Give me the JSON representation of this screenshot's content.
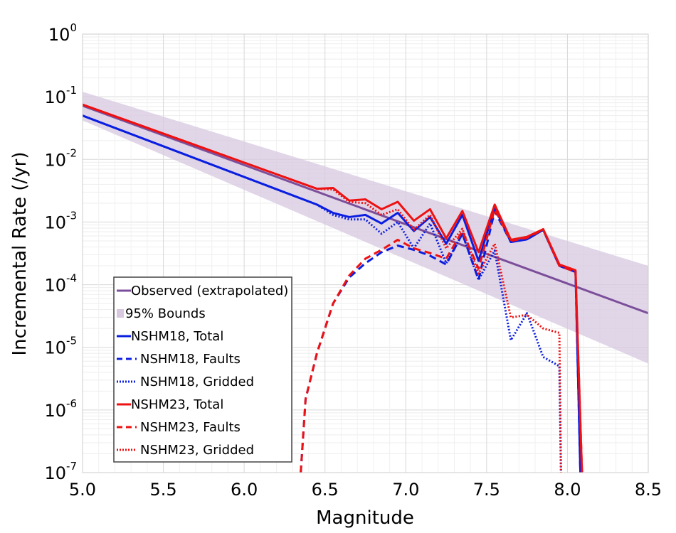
{
  "chart_data": {
    "type": "line",
    "xlabel": "Magnitude",
    "ylabel": "Incremental Rate (/yr)",
    "xlim": [
      5.0,
      8.5
    ],
    "ylim": [
      1e-07,
      1
    ],
    "yscale": "log",
    "grid": true,
    "legend_position": "bottom-left",
    "x_ticks": [
      "5.0",
      "5.5",
      "6.0",
      "6.5",
      "7.0",
      "7.5",
      "8.0",
      "8.5"
    ],
    "y_ticks": [
      {
        "base": "10",
        "exp": "0"
      },
      {
        "base": "10",
        "exp": "-1"
      },
      {
        "base": "10",
        "exp": "-2"
      },
      {
        "base": "10",
        "exp": "-3"
      },
      {
        "base": "10",
        "exp": "-4"
      },
      {
        "base": "10",
        "exp": "-5"
      },
      {
        "base": "10",
        "exp": "-6"
      },
      {
        "base": "10",
        "exp": "-7"
      }
    ],
    "bounds": {
      "name": "95% Bounds",
      "color": "#d7c8e0",
      "x": [
        5.0,
        8.5
      ],
      "upper": [
        0.12,
        0.0002
      ],
      "lower": [
        0.042,
        5.5e-06
      ]
    },
    "series": [
      {
        "name": "Observed (extrapolated)",
        "color": "#7b4e9a",
        "dash": "solid",
        "x": [
          5.0,
          8.5
        ],
        "y": [
          0.072,
          3.5e-05
        ]
      },
      {
        "name": "NSHM18, Total",
        "color": "#0a1ee0",
        "dash": "solid",
        "x": [
          5.0,
          6.45,
          6.55,
          6.65,
          6.75,
          6.85,
          6.95,
          7.05,
          7.15,
          7.25,
          7.35,
          7.45,
          7.55,
          7.65,
          7.75,
          7.85,
          7.95,
          8.05,
          8.08
        ],
        "y": [
          0.05,
          0.0019,
          0.0014,
          0.0012,
          0.0013,
          0.00095,
          0.0014,
          0.00072,
          0.0012,
          0.00045,
          0.0013,
          0.00024,
          0.0017,
          0.00048,
          0.00053,
          0.00075,
          0.0002,
          0.00016,
          1e-07
        ]
      },
      {
        "name": "NSHM18, Faults",
        "color": "#0a1ee0",
        "dash": "dashed",
        "x": [
          6.35,
          6.38,
          6.45,
          6.55,
          6.65,
          6.75,
          6.85,
          6.95,
          7.05,
          7.15,
          7.25,
          7.35,
          7.45,
          7.55,
          7.65,
          7.75,
          7.85,
          7.95,
          8.05,
          8.08
        ],
        "y": [
          1e-07,
          1.5e-06,
          8e-06,
          5e-05,
          0.00013,
          0.00022,
          0.00033,
          0.00042,
          0.00036,
          0.00029,
          0.00021,
          0.00065,
          0.00012,
          0.0015,
          0.00048,
          0.00053,
          0.00075,
          0.0002,
          0.00016,
          1e-07
        ]
      },
      {
        "name": "NSHM18, Gridded",
        "color": "#0a1ee0",
        "dash": "dotted",
        "x": [
          5.0,
          6.45,
          6.55,
          6.65,
          6.75,
          6.85,
          6.95,
          7.05,
          7.15,
          7.25,
          7.35,
          7.45,
          7.55,
          7.65,
          7.75,
          7.85,
          7.95,
          7.96
        ],
        "y": [
          0.05,
          0.0019,
          0.0013,
          0.0011,
          0.0011,
          0.00065,
          0.001,
          0.00038,
          0.00095,
          0.00022,
          0.00065,
          0.00012,
          0.00035,
          1.3e-05,
          3.5e-05,
          7e-06,
          5e-06,
          1e-07
        ]
      },
      {
        "name": "NSHM23, Total",
        "color": "#ee1111",
        "dash": "solid",
        "x": [
          5.0,
          6.45,
          6.55,
          6.65,
          6.75,
          6.85,
          6.95,
          7.05,
          7.15,
          7.25,
          7.35,
          7.45,
          7.55,
          7.65,
          7.75,
          7.85,
          7.95,
          8.05,
          8.09
        ],
        "y": [
          0.075,
          0.0034,
          0.0035,
          0.0022,
          0.0023,
          0.0016,
          0.0021,
          0.00105,
          0.0016,
          0.00055,
          0.0015,
          0.00033,
          0.0019,
          0.00052,
          0.00058,
          0.00077,
          0.00021,
          0.00017,
          1e-07
        ]
      },
      {
        "name": "NSHM23, Faults",
        "color": "#ee1111",
        "dash": "dashed",
        "x": [
          6.35,
          6.38,
          6.45,
          6.55,
          6.65,
          6.75,
          6.85,
          6.95,
          7.05,
          7.15,
          7.25,
          7.35,
          7.45,
          7.55,
          7.65,
          7.75,
          7.85,
          7.95,
          8.05,
          8.09
        ],
        "y": [
          1e-07,
          1.5e-06,
          8e-06,
          5e-05,
          0.00014,
          0.00026,
          0.00036,
          0.00052,
          0.00038,
          0.00032,
          0.00026,
          0.00072,
          0.00018,
          0.0016,
          0.0005,
          0.00056,
          0.00076,
          0.0002,
          0.00016,
          1e-07
        ]
      },
      {
        "name": "NSHM23, Gridded",
        "color": "#ee1111",
        "dash": "dotted",
        "x": [
          5.0,
          6.45,
          6.55,
          6.65,
          6.75,
          6.85,
          6.95,
          7.05,
          7.15,
          7.25,
          7.35,
          7.45,
          7.55,
          7.65,
          7.75,
          7.85,
          7.95,
          7.96
        ],
        "y": [
          0.075,
          0.0034,
          0.0033,
          0.0021,
          0.002,
          0.0013,
          0.0016,
          0.00075,
          0.0013,
          0.00038,
          0.00078,
          0.00015,
          0.00045,
          3e-05,
          3.3e-05,
          2e-05,
          1.7e-05,
          1e-07
        ]
      }
    ]
  }
}
